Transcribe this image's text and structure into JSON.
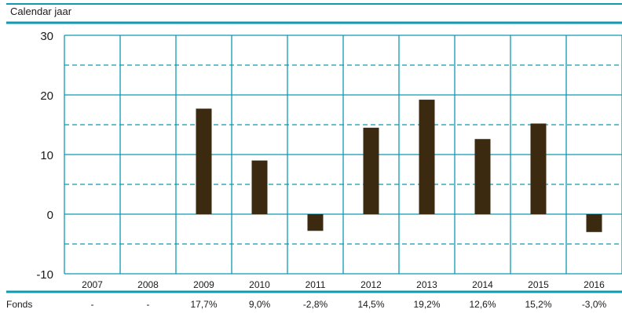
{
  "header": {
    "title": "Calendar jaar"
  },
  "colors": {
    "accent": "#0e9bb0",
    "bar": "#3b2a10",
    "text": "#1a1a1a"
  },
  "chart_data": {
    "type": "bar",
    "categories": [
      "2007",
      "2008",
      "2009",
      "2010",
      "2011",
      "2012",
      "2013",
      "2014",
      "2015",
      "2016"
    ],
    "series": [
      {
        "name": "Fonds",
        "values": [
          null,
          null,
          17.7,
          9.0,
          -2.8,
          14.5,
          19.2,
          12.6,
          15.2,
          -3.0
        ]
      }
    ],
    "ylim": [
      -10,
      30
    ],
    "yticks": [
      -10,
      0,
      10,
      20,
      30
    ],
    "grid": "solid at labeled ticks, dashed at midpoints",
    "row": {
      "label": "Fonds",
      "values": [
        "-",
        "-",
        "17,7%",
        "9,0%",
        "-2,8%",
        "14,5%",
        "19,2%",
        "12,6%",
        "15,2%",
        "-3,0%"
      ]
    }
  }
}
